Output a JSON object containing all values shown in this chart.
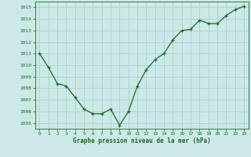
{
  "x": [
    0,
    1,
    2,
    3,
    4,
    5,
    6,
    7,
    8,
    9,
    10,
    11,
    12,
    13,
    14,
    15,
    16,
    17,
    18,
    19,
    20,
    21,
    22,
    23
  ],
  "y": [
    1011.0,
    1009.8,
    1008.4,
    1008.2,
    1007.2,
    1006.2,
    1005.8,
    1005.8,
    1006.2,
    1004.8,
    1006.0,
    1008.2,
    1009.6,
    1010.5,
    1011.0,
    1012.2,
    1013.0,
    1013.1,
    1013.9,
    1013.6,
    1013.6,
    1014.3,
    1014.8,
    1015.1
  ],
  "line_color": "#1a6b1a",
  "marker_color": "#1a6b1a",
  "bg_color": "#cce8e8",
  "grid_color": "#b0d0d0",
  "xlabel": "Graphe pression niveau de la mer (hPa)",
  "xlabel_color": "#1a6b1a",
  "tick_color": "#1a6b1a",
  "ylim": [
    1004.5,
    1015.5
  ],
  "xlim": [
    -0.5,
    23.5
  ],
  "yticks": [
    1005,
    1006,
    1007,
    1008,
    1009,
    1010,
    1011,
    1012,
    1013,
    1014,
    1015
  ],
  "xticks": [
    0,
    1,
    2,
    3,
    4,
    5,
    6,
    7,
    8,
    9,
    10,
    11,
    12,
    13,
    14,
    15,
    16,
    17,
    18,
    19,
    20,
    21,
    22,
    23
  ],
  "figsize": [
    3.2,
    2.0
  ],
  "dpi": 100
}
